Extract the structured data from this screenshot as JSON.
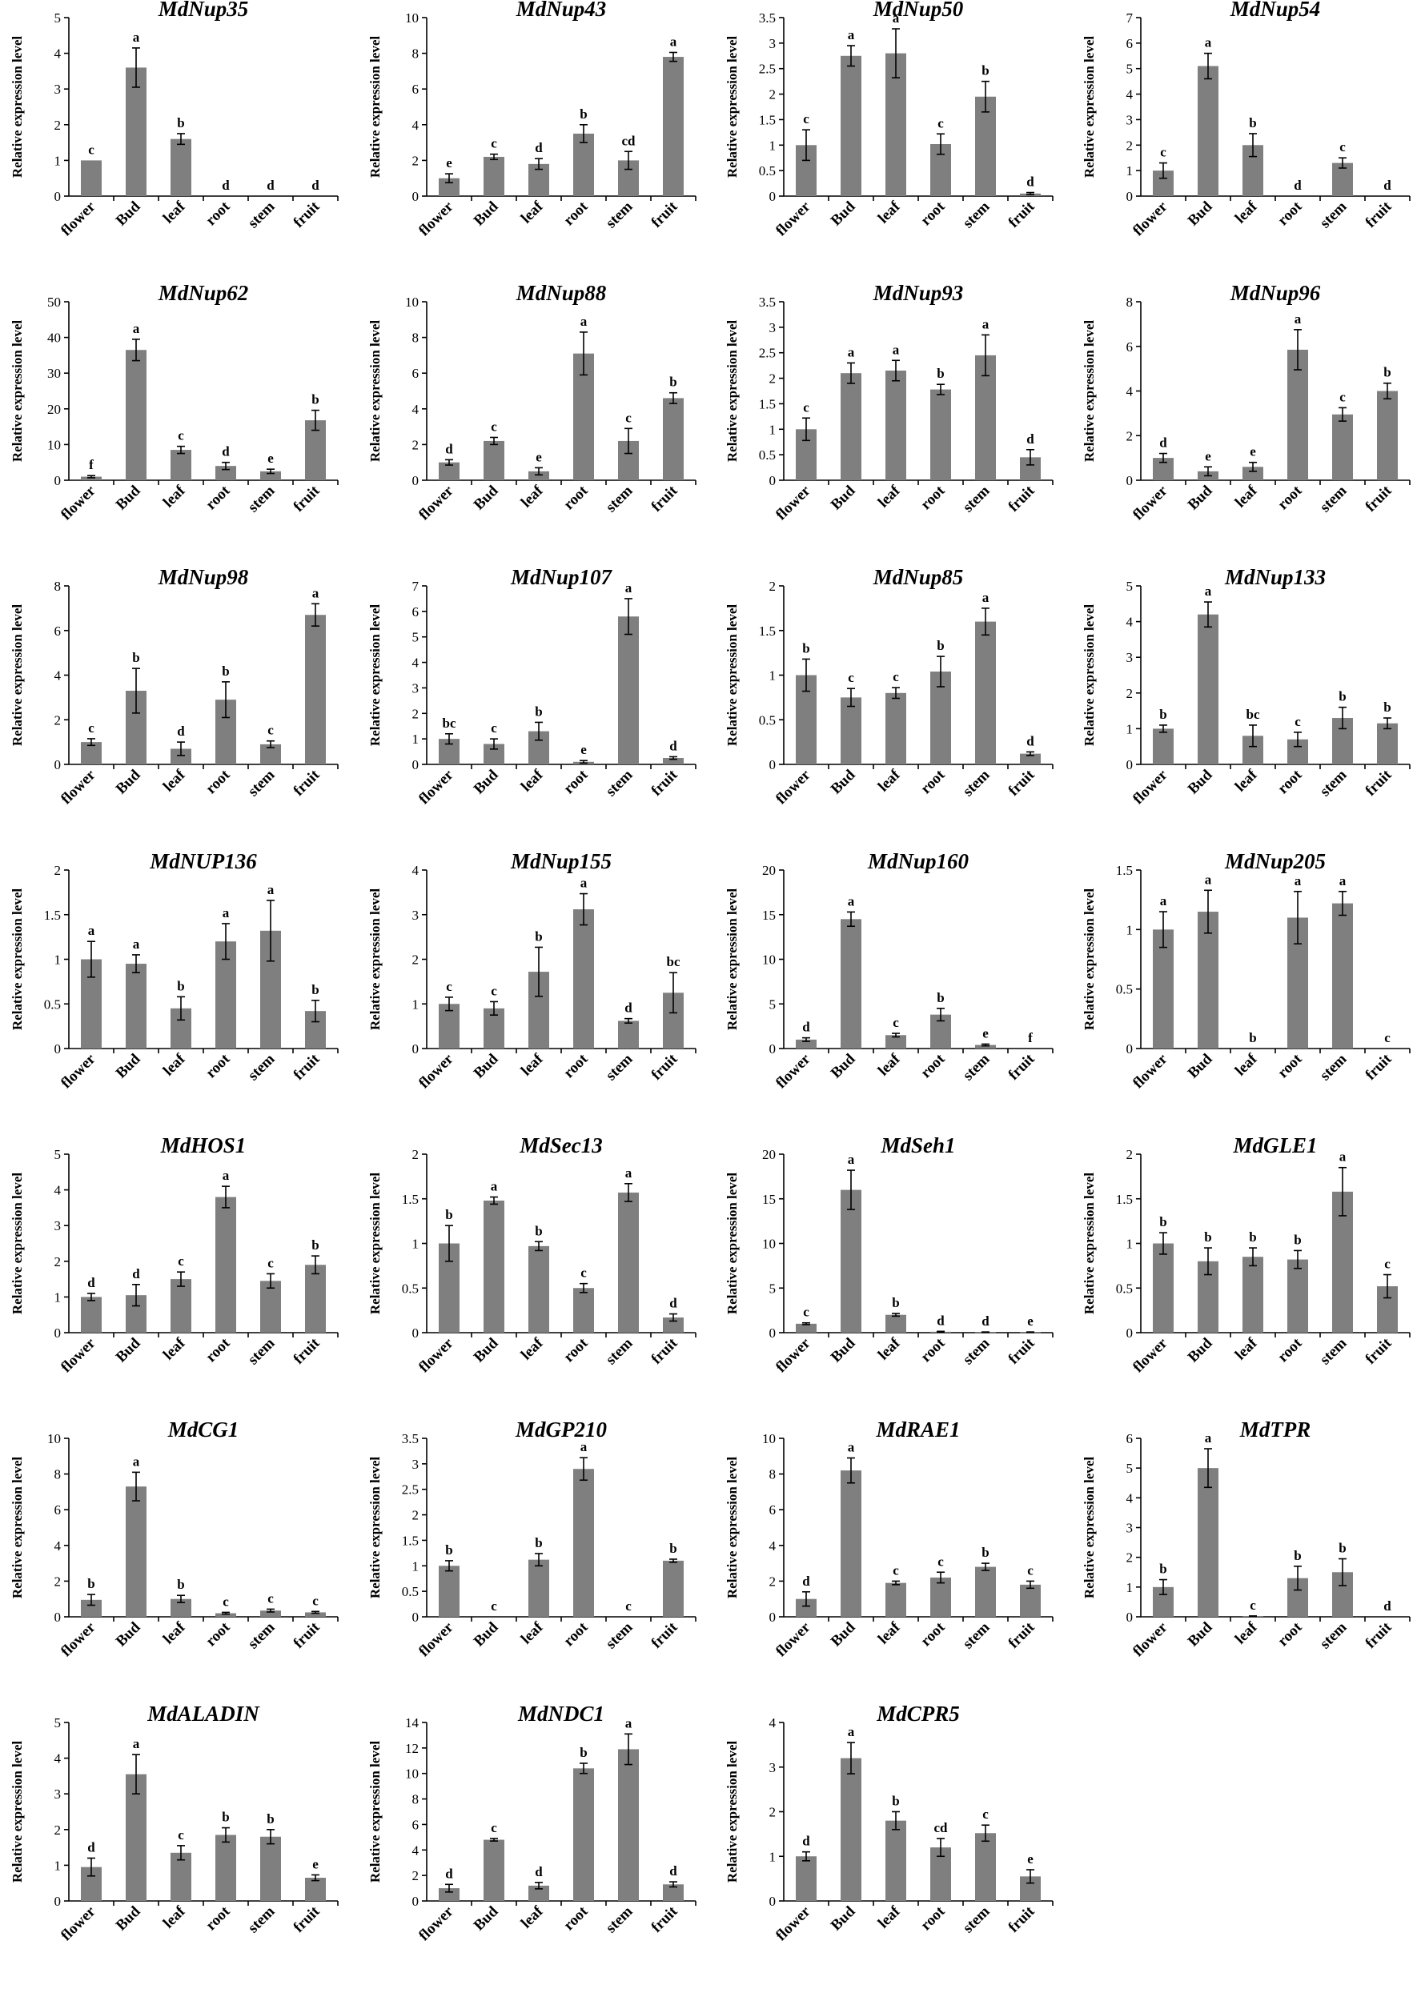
{
  "figure": {
    "categories": [
      "flower",
      "Bud",
      "leaf",
      "root",
      "stem",
      "fruit"
    ],
    "ylabel": "Relative expression level",
    "bar_color": "#7f7f7f",
    "axis_color": "#000000"
  },
  "chart_data": [
    {
      "type": "bar",
      "title": "MdNup35",
      "ylabel": "Relative expression level",
      "categories": [
        "flower",
        "Bud",
        "leaf",
        "root",
        "stem",
        "fruit"
      ],
      "ylim": [
        0,
        5
      ],
      "yticks": [
        0,
        1,
        2,
        3,
        4,
        5
      ],
      "values": [
        1.0,
        3.6,
        1.6,
        0,
        0,
        0
      ],
      "errors": [
        0,
        0.55,
        0.15,
        0,
        0,
        0
      ],
      "letters": [
        "c",
        "a",
        "b",
        "d",
        "d",
        "d"
      ]
    },
    {
      "type": "bar",
      "title": "MdNup43",
      "ylabel": "Relative expression level",
      "categories": [
        "flower",
        "Bud",
        "leaf",
        "root",
        "stem",
        "fruit"
      ],
      "ylim": [
        0,
        10
      ],
      "yticks": [
        0,
        2,
        4,
        6,
        8,
        10
      ],
      "values": [
        1.0,
        2.2,
        1.8,
        3.5,
        2.0,
        7.8
      ],
      "errors": [
        0.25,
        0.15,
        0.3,
        0.5,
        0.5,
        0.25
      ],
      "letters": [
        "e",
        "c",
        "d",
        "b",
        "cd",
        "a"
      ]
    },
    {
      "type": "bar",
      "title": "MdNup50",
      "ylabel": "Relative expression level",
      "categories": [
        "flower",
        "Bud",
        "leaf",
        "root",
        "stem",
        "fruit"
      ],
      "ylim": [
        0,
        3.5
      ],
      "yticks": [
        0,
        0.5,
        1,
        1.5,
        2,
        2.5,
        3,
        3.5
      ],
      "values": [
        1.0,
        2.75,
        2.8,
        1.02,
        1.95,
        0.05
      ],
      "errors": [
        0.3,
        0.2,
        0.48,
        0.2,
        0.3,
        0.02
      ],
      "letters": [
        "c",
        "a",
        "a",
        "c",
        "b",
        "d"
      ]
    },
    {
      "type": "bar",
      "title": "MdNup54",
      "ylabel": "Relative expression level",
      "categories": [
        "flower",
        "Bud",
        "leaf",
        "root",
        "stem",
        "fruit"
      ],
      "ylim": [
        0,
        7
      ],
      "yticks": [
        0,
        1,
        2,
        3,
        4,
        5,
        6,
        7
      ],
      "values": [
        1.0,
        5.1,
        2.0,
        0,
        1.3,
        0
      ],
      "errors": [
        0.3,
        0.5,
        0.45,
        0,
        0.2,
        0
      ],
      "letters": [
        "c",
        "a",
        "b",
        "d",
        "c",
        "d"
      ]
    },
    {
      "type": "bar",
      "title": "MdNup62",
      "ylabel": "Relative expression level",
      "categories": [
        "flower",
        "Bud",
        "leaf",
        "root",
        "stem",
        "fruit"
      ],
      "ylim": [
        0,
        50
      ],
      "yticks": [
        0,
        10,
        20,
        30,
        40,
        50
      ],
      "values": [
        1.0,
        36.5,
        8.5,
        4.0,
        2.5,
        16.8
      ],
      "errors": [
        0.3,
        3.0,
        1.0,
        1.0,
        0.6,
        2.8
      ],
      "letters": [
        "f",
        "a",
        "c",
        "d",
        "e",
        "b"
      ]
    },
    {
      "type": "bar",
      "title": "MdNup88",
      "ylabel": "Relative expression level",
      "categories": [
        "flower",
        "Bud",
        "leaf",
        "root",
        "stem",
        "fruit"
      ],
      "ylim": [
        0,
        10
      ],
      "yticks": [
        0,
        2,
        4,
        6,
        8,
        10
      ],
      "values": [
        1.0,
        2.2,
        0.5,
        7.1,
        2.2,
        4.6
      ],
      "errors": [
        0.15,
        0.2,
        0.2,
        1.2,
        0.7,
        0.3
      ],
      "letters": [
        "d",
        "c",
        "e",
        "a",
        "c",
        "b"
      ]
    },
    {
      "type": "bar",
      "title": "MdNup93",
      "ylabel": "Relative expression level",
      "categories": [
        "flower",
        "Bud",
        "leaf",
        "root",
        "stem",
        "fruit"
      ],
      "ylim": [
        0,
        3.5
      ],
      "yticks": [
        0,
        0.5,
        1,
        1.5,
        2,
        2.5,
        3,
        3.5
      ],
      "values": [
        1.0,
        2.1,
        2.15,
        1.78,
        2.45,
        0.45
      ],
      "errors": [
        0.22,
        0.2,
        0.2,
        0.1,
        0.4,
        0.15
      ],
      "letters": [
        "c",
        "a",
        "a",
        "b",
        "a",
        "d"
      ]
    },
    {
      "type": "bar",
      "title": "MdNup96",
      "ylabel": "Relative expression level",
      "categories": [
        "flower",
        "Bud",
        "leaf",
        "root",
        "stem",
        "fruit"
      ],
      "ylim": [
        0,
        8
      ],
      "yticks": [
        0,
        2,
        4,
        6,
        8
      ],
      "values": [
        1.0,
        0.4,
        0.6,
        5.85,
        2.95,
        4.0
      ],
      "errors": [
        0.2,
        0.2,
        0.2,
        0.9,
        0.3,
        0.35
      ],
      "letters": [
        "d",
        "e",
        "e",
        "a",
        "c",
        "b"
      ]
    },
    {
      "type": "bar",
      "title": "MdNup98",
      "ylabel": "Relative expression level",
      "categories": [
        "flower",
        "Bud",
        "leaf",
        "root",
        "stem",
        "fruit"
      ],
      "ylim": [
        0,
        8
      ],
      "yticks": [
        0,
        2,
        4,
        6,
        8
      ],
      "values": [
        1.0,
        3.3,
        0.7,
        2.9,
        0.9,
        6.7
      ],
      "errors": [
        0.15,
        1.0,
        0.3,
        0.8,
        0.15,
        0.5
      ],
      "letters": [
        "c",
        "b",
        "d",
        "b",
        "c",
        "a"
      ]
    },
    {
      "type": "bar",
      "title": "MdNup107",
      "ylabel": "Relative expression level",
      "categories": [
        "flower",
        "Bud",
        "leaf",
        "root",
        "stem",
        "fruit"
      ],
      "ylim": [
        0,
        7
      ],
      "yticks": [
        0,
        1,
        2,
        3,
        4,
        5,
        6,
        7
      ],
      "values": [
        1.0,
        0.8,
        1.3,
        0.1,
        5.8,
        0.25
      ],
      "errors": [
        0.2,
        0.2,
        0.35,
        0.05,
        0.7,
        0.05
      ],
      "letters": [
        "bc",
        "c",
        "b",
        "e",
        "a",
        "d"
      ]
    },
    {
      "type": "bar",
      "title": "MdNup85",
      "ylabel": "Relative expression level",
      "categories": [
        "flower",
        "Bud",
        "leaf",
        "root",
        "stem",
        "fruit"
      ],
      "ylim": [
        0,
        2
      ],
      "yticks": [
        0,
        0.5,
        1,
        1.5,
        2
      ],
      "values": [
        1.0,
        0.75,
        0.8,
        1.04,
        1.6,
        0.12
      ],
      "errors": [
        0.18,
        0.1,
        0.06,
        0.17,
        0.15,
        0.02
      ],
      "letters": [
        "b",
        "c",
        "c",
        "b",
        "a",
        "d"
      ]
    },
    {
      "type": "bar",
      "title": "MdNup133",
      "ylabel": "Relative expression level",
      "categories": [
        "flower",
        "Bud",
        "leaf",
        "root",
        "stem",
        "fruit"
      ],
      "ylim": [
        0,
        5
      ],
      "yticks": [
        0,
        1,
        2,
        3,
        4,
        5
      ],
      "values": [
        1.0,
        4.2,
        0.8,
        0.7,
        1.3,
        1.15
      ],
      "errors": [
        0.1,
        0.35,
        0.3,
        0.2,
        0.3,
        0.15
      ],
      "letters": [
        "b",
        "a",
        "bc",
        "c",
        "b",
        "b"
      ]
    },
    {
      "type": "bar",
      "title": "MdNUP136",
      "ylabel": "Relative expression level",
      "categories": [
        "flower",
        "Bud",
        "leaf",
        "root",
        "stem",
        "fruit"
      ],
      "ylim": [
        0,
        2
      ],
      "yticks": [
        0,
        0.5,
        1,
        1.5,
        2
      ],
      "values": [
        1.0,
        0.95,
        0.45,
        1.2,
        1.32,
        0.42
      ],
      "errors": [
        0.2,
        0.1,
        0.13,
        0.2,
        0.34,
        0.12
      ],
      "letters": [
        "a",
        "a",
        "b",
        "a",
        "a",
        "b"
      ]
    },
    {
      "type": "bar",
      "title": "MdNup155",
      "ylabel": "Relative expression level",
      "categories": [
        "flower",
        "Bud",
        "leaf",
        "root",
        "stem",
        "fruit"
      ],
      "ylim": [
        0,
        4
      ],
      "yticks": [
        0,
        1,
        2,
        3,
        4
      ],
      "values": [
        1.0,
        0.9,
        1.72,
        3.12,
        0.62,
        1.25
      ],
      "errors": [
        0.15,
        0.15,
        0.55,
        0.35,
        0.05,
        0.45
      ],
      "letters": [
        "c",
        "c",
        "b",
        "a",
        "d",
        "bc"
      ]
    },
    {
      "type": "bar",
      "title": "MdNup160",
      "ylabel": "Relative expression level",
      "categories": [
        "flower",
        "Bud",
        "leaf",
        "root",
        "stem",
        "fruit"
      ],
      "ylim": [
        0,
        20
      ],
      "yticks": [
        0,
        5,
        10,
        15,
        20
      ],
      "values": [
        1.0,
        14.5,
        1.5,
        3.8,
        0.4,
        0
      ],
      "errors": [
        0.2,
        0.8,
        0.2,
        0.7,
        0.1,
        0
      ],
      "letters": [
        "d",
        "a",
        "c",
        "b",
        "e",
        "f"
      ]
    },
    {
      "type": "bar",
      "title": "MdNup205",
      "ylabel": "Relative expression level",
      "categories": [
        "flower",
        "Bud",
        "leaf",
        "root",
        "stem",
        "fruit"
      ],
      "ylim": [
        0,
        1.5
      ],
      "yticks": [
        0,
        0.5,
        1,
        1.5
      ],
      "values": [
        1.0,
        1.15,
        0,
        1.1,
        1.22,
        0
      ],
      "errors": [
        0.15,
        0.18,
        0,
        0.22,
        0.1,
        0
      ],
      "letters": [
        "a",
        "a",
        "b",
        "a",
        "a",
        "c"
      ]
    },
    {
      "type": "bar",
      "title": "MdHOS1",
      "ylabel": "Relative expression level",
      "categories": [
        "flower",
        "Bud",
        "leaf",
        "root",
        "stem",
        "fruit"
      ],
      "ylim": [
        0,
        5
      ],
      "yticks": [
        0,
        1,
        2,
        3,
        4,
        5
      ],
      "values": [
        1.0,
        1.05,
        1.5,
        3.8,
        1.45,
        1.9
      ],
      "errors": [
        0.1,
        0.3,
        0.2,
        0.3,
        0.2,
        0.25
      ],
      "letters": [
        "d",
        "d",
        "c",
        "a",
        "c",
        "b"
      ]
    },
    {
      "type": "bar",
      "title": "MdSec13",
      "ylabel": "Relative expression level",
      "categories": [
        "flower",
        "Bud",
        "leaf",
        "root",
        "stem",
        "fruit"
      ],
      "ylim": [
        0,
        2
      ],
      "yticks": [
        0,
        0.5,
        1,
        1.5,
        2
      ],
      "values": [
        1.0,
        1.48,
        0.97,
        0.5,
        1.57,
        0.17
      ],
      "errors": [
        0.2,
        0.04,
        0.05,
        0.05,
        0.1,
        0.04
      ],
      "letters": [
        "b",
        "a",
        "b",
        "c",
        "a",
        "d"
      ]
    },
    {
      "type": "bar",
      "title": "MdSeh1",
      "ylabel": "Relative expression level",
      "categories": [
        "flower",
        "Bud",
        "leaf",
        "root",
        "stem",
        "fruit"
      ],
      "ylim": [
        0,
        20
      ],
      "yticks": [
        0,
        5,
        10,
        15,
        20
      ],
      "values": [
        1.0,
        16.0,
        2.0,
        0.1,
        0.05,
        0.05
      ],
      "errors": [
        0.1,
        2.2,
        0.15,
        0.05,
        0.03,
        0.03
      ],
      "letters": [
        "c",
        "a",
        "b",
        "d",
        "d",
        "e"
      ]
    },
    {
      "type": "bar",
      "title": "MdGLE1",
      "ylabel": "Relative expression level",
      "categories": [
        "flower",
        "Bud",
        "leaf",
        "root",
        "stem",
        "fruit"
      ],
      "ylim": [
        0,
        2
      ],
      "yticks": [
        0,
        0.5,
        1,
        1.5,
        2
      ],
      "values": [
        1.0,
        0.8,
        0.85,
        0.82,
        1.58,
        0.52
      ],
      "errors": [
        0.12,
        0.15,
        0.1,
        0.1,
        0.27,
        0.13
      ],
      "letters": [
        "b",
        "b",
        "b",
        "b",
        "a",
        "c"
      ]
    },
    {
      "type": "bar",
      "title": "MdCG1",
      "ylabel": "Relative expression level",
      "categories": [
        "flower",
        "Bud",
        "leaf",
        "root",
        "stem",
        "fruit"
      ],
      "ylim": [
        0,
        10
      ],
      "yticks": [
        0,
        2,
        4,
        6,
        8,
        10
      ],
      "values": [
        0.95,
        7.3,
        1.0,
        0.2,
        0.35,
        0.25
      ],
      "errors": [
        0.3,
        0.8,
        0.2,
        0.05,
        0.08,
        0.05
      ],
      "letters": [
        "b",
        "a",
        "b",
        "c",
        "c",
        "c"
      ]
    },
    {
      "type": "bar",
      "title": "MdGP210",
      "ylabel": "Relative expression level",
      "categories": [
        "flower",
        "Bud",
        "leaf",
        "root",
        "stem",
        "fruit"
      ],
      "ylim": [
        0,
        3.5
      ],
      "yticks": [
        0,
        0.5,
        1,
        1.5,
        2,
        2.5,
        3,
        3.5
      ],
      "values": [
        1.0,
        0,
        1.12,
        2.9,
        0,
        1.1
      ],
      "errors": [
        0.1,
        0,
        0.12,
        0.22,
        0,
        0.03
      ],
      "letters": [
        "b",
        "c",
        "b",
        "a",
        "c",
        "b"
      ]
    },
    {
      "type": "bar",
      "title": "MdRAE1",
      "ylabel": "Relative expression level",
      "categories": [
        "flower",
        "Bud",
        "leaf",
        "root",
        "stem",
        "fruit"
      ],
      "ylim": [
        0,
        10
      ],
      "yticks": [
        0,
        2,
        4,
        6,
        8,
        10
      ],
      "values": [
        1.0,
        8.2,
        1.9,
        2.2,
        2.8,
        1.8
      ],
      "errors": [
        0.4,
        0.7,
        0.1,
        0.3,
        0.2,
        0.2
      ],
      "letters": [
        "d",
        "a",
        "c",
        "c",
        "b",
        "c"
      ]
    },
    {
      "type": "bar",
      "title": "MdTPR",
      "ylabel": "Relative expression level",
      "categories": [
        "flower",
        "Bud",
        "leaf",
        "root",
        "stem",
        "fruit"
      ],
      "ylim": [
        0,
        6
      ],
      "yticks": [
        0,
        1,
        2,
        3,
        4,
        5,
        6
      ],
      "values": [
        1.0,
        5.0,
        0.02,
        1.3,
        1.5,
        0
      ],
      "errors": [
        0.25,
        0.65,
        0.01,
        0.4,
        0.45,
        0
      ],
      "letters": [
        "b",
        "a",
        "c",
        "b",
        "b",
        "d"
      ]
    },
    {
      "type": "bar",
      "title": "MdALADIN",
      "ylabel": "Relative expression level",
      "categories": [
        "flower",
        "Bud",
        "leaf",
        "root",
        "stem",
        "fruit"
      ],
      "ylim": [
        0,
        5
      ],
      "yticks": [
        0,
        1,
        2,
        3,
        4,
        5
      ],
      "values": [
        0.95,
        3.55,
        1.35,
        1.85,
        1.8,
        0.65
      ],
      "errors": [
        0.25,
        0.55,
        0.2,
        0.2,
        0.2,
        0.08
      ],
      "letters": [
        "d",
        "a",
        "c",
        "b",
        "b",
        "e"
      ]
    },
    {
      "type": "bar",
      "title": "MdNDC1",
      "ylabel": "Relative expression level",
      "categories": [
        "flower",
        "Bud",
        "leaf",
        "root",
        "stem",
        "fruit"
      ],
      "ylim": [
        0,
        14
      ],
      "yticks": [
        0,
        2,
        4,
        6,
        8,
        10,
        12,
        14
      ],
      "values": [
        1.0,
        4.8,
        1.2,
        10.4,
        11.9,
        1.3
      ],
      "errors": [
        0.3,
        0.1,
        0.25,
        0.4,
        1.2,
        0.2
      ],
      "letters": [
        "d",
        "c",
        "d",
        "b",
        "a",
        "d"
      ]
    },
    {
      "type": "bar",
      "title": "MdCPR5",
      "ylabel": "Relative expression level",
      "categories": [
        "flower",
        "Bud",
        "leaf",
        "root",
        "stem",
        "fruit"
      ],
      "ylim": [
        0,
        4
      ],
      "yticks": [
        0,
        1,
        2,
        3,
        4
      ],
      "values": [
        1.0,
        3.2,
        1.8,
        1.2,
        1.52,
        0.55
      ],
      "errors": [
        0.1,
        0.35,
        0.2,
        0.2,
        0.18,
        0.15
      ],
      "letters": [
        "d",
        "a",
        "b",
        "cd",
        "c",
        "e"
      ]
    }
  ]
}
